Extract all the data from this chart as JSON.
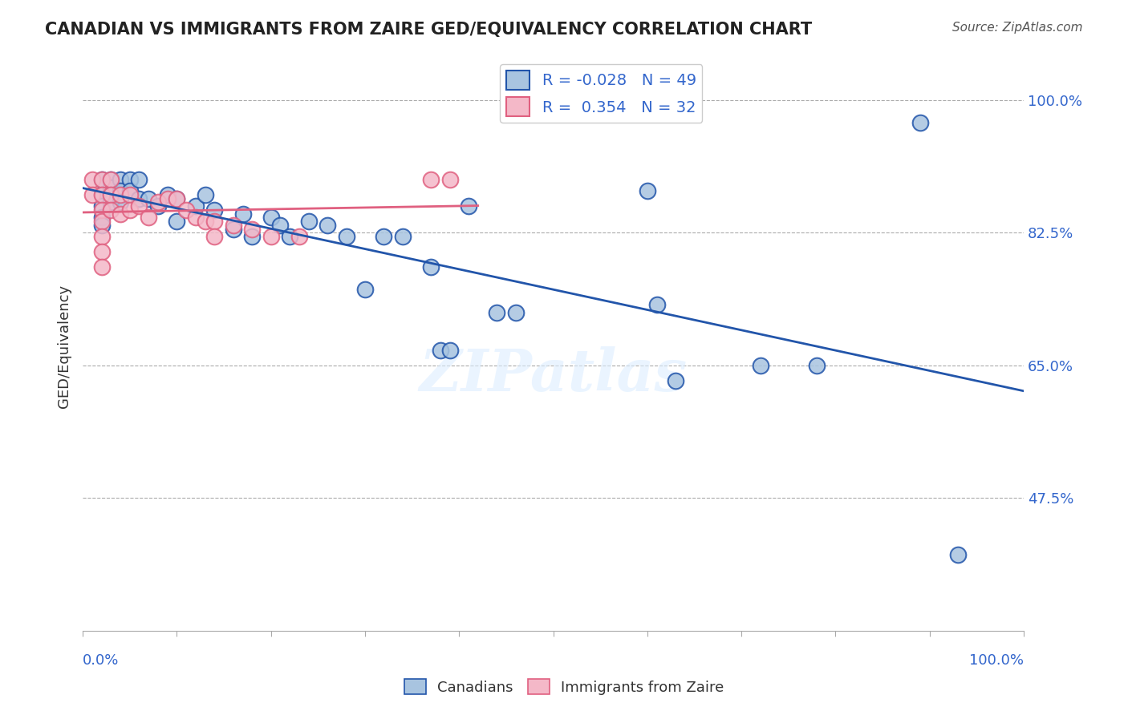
{
  "title": "CANADIAN VS IMMIGRANTS FROM ZAIRE GED/EQUIVALENCY CORRELATION CHART",
  "source": "Source: ZipAtlas.com",
  "ylabel": "GED/Equivalency",
  "ylabel_ticks": [
    "100.0%",
    "82.5%",
    "65.0%",
    "47.5%"
  ],
  "ylabel_tick_vals": [
    1.0,
    0.825,
    0.65,
    0.475
  ],
  "R_blue": "-0.028",
  "N_blue": "49",
  "R_pink": "0.354",
  "N_pink": "32",
  "blue_color": "#a8c4e0",
  "pink_color": "#f4b8c8",
  "line_blue": "#2255aa",
  "line_pink": "#e06080",
  "blue_scatter_x": [
    0.02,
    0.02,
    0.02,
    0.02,
    0.02,
    0.03,
    0.03,
    0.03,
    0.03,
    0.04,
    0.04,
    0.04,
    0.05,
    0.05,
    0.06,
    0.06,
    0.07,
    0.08,
    0.09,
    0.1,
    0.1,
    0.12,
    0.13,
    0.14,
    0.16,
    0.17,
    0.18,
    0.2,
    0.21,
    0.22,
    0.24,
    0.26,
    0.28,
    0.3,
    0.32,
    0.34,
    0.37,
    0.38,
    0.39,
    0.41,
    0.44,
    0.46,
    0.6,
    0.61,
    0.63,
    0.72,
    0.78,
    0.89,
    0.93
  ],
  "blue_scatter_y": [
    0.895,
    0.875,
    0.86,
    0.845,
    0.835,
    0.895,
    0.885,
    0.875,
    0.865,
    0.895,
    0.88,
    0.865,
    0.895,
    0.88,
    0.895,
    0.87,
    0.87,
    0.86,
    0.875,
    0.87,
    0.84,
    0.86,
    0.875,
    0.855,
    0.83,
    0.85,
    0.82,
    0.845,
    0.835,
    0.82,
    0.84,
    0.835,
    0.82,
    0.75,
    0.82,
    0.82,
    0.78,
    0.67,
    0.67,
    0.86,
    0.72,
    0.72,
    0.88,
    0.73,
    0.63,
    0.65,
    0.65,
    0.97,
    0.4
  ],
  "pink_scatter_x": [
    0.01,
    0.01,
    0.02,
    0.02,
    0.02,
    0.02,
    0.02,
    0.02,
    0.02,
    0.03,
    0.03,
    0.03,
    0.04,
    0.04,
    0.05,
    0.05,
    0.06,
    0.07,
    0.08,
    0.09,
    0.1,
    0.11,
    0.12,
    0.13,
    0.14,
    0.14,
    0.16,
    0.18,
    0.2,
    0.23,
    0.37,
    0.39
  ],
  "pink_scatter_y": [
    0.895,
    0.875,
    0.895,
    0.875,
    0.855,
    0.84,
    0.82,
    0.8,
    0.78,
    0.895,
    0.875,
    0.855,
    0.875,
    0.85,
    0.875,
    0.855,
    0.86,
    0.845,
    0.865,
    0.87,
    0.87,
    0.855,
    0.845,
    0.84,
    0.84,
    0.82,
    0.835,
    0.83,
    0.82,
    0.82,
    0.895,
    0.895
  ],
  "watermark": "ZIPatlas",
  "background_color": "#ffffff"
}
